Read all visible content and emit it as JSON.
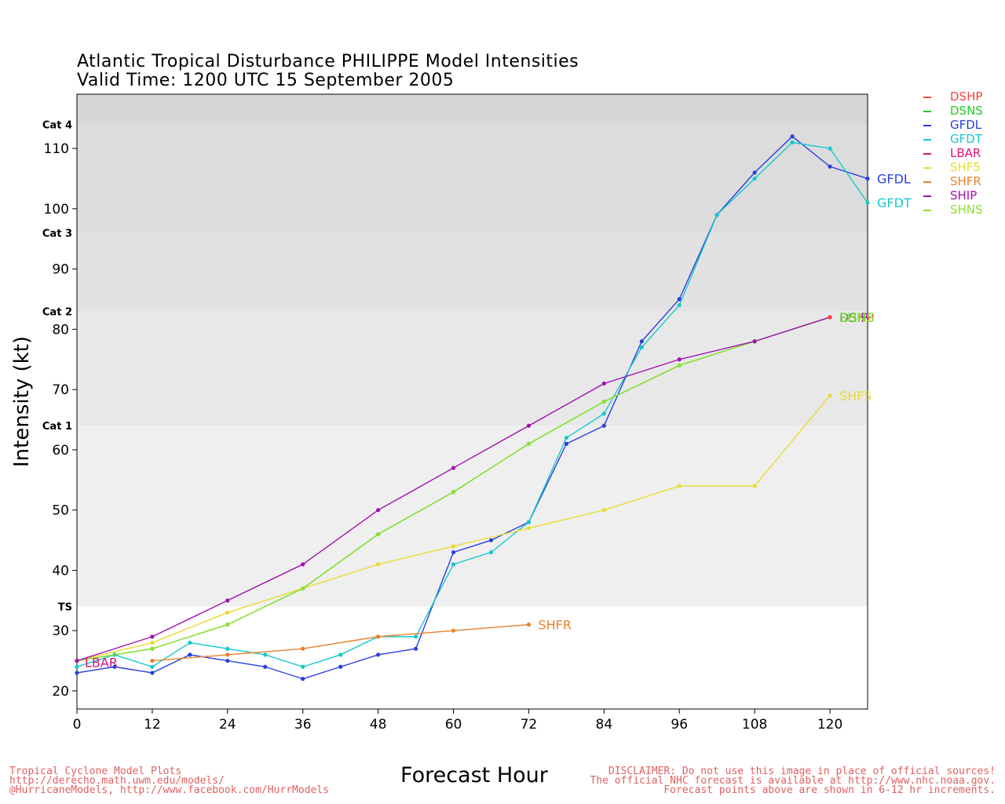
{
  "title_line1": "Atlantic Tropical Disturbance PHILIPPE Model Intensities",
  "title_line2": "Valid Time: 1200 UTC 15 September 2005",
  "legend": [
    {
      "name": "DSHP",
      "color": "#ff4040"
    },
    {
      "name": "DSNS",
      "color": "#22cc22"
    },
    {
      "name": "GFDL",
      "color": "#2a3fe0"
    },
    {
      "name": "GFDT",
      "color": "#16c8cc"
    },
    {
      "name": "LBAR",
      "color": "#e0107a"
    },
    {
      "name": "SHF5",
      "color": "#e8dc30"
    },
    {
      "name": "SHFR",
      "color": "#e8822a"
    },
    {
      "name": "SHIP",
      "color": "#a010b0"
    },
    {
      "name": "SHNS",
      "color": "#8ee030"
    }
  ],
  "footer_left": [
    "Tropical Cyclone Model Plots",
    "http://derecho.math.uwm.edu/models/",
    "@HurricaneModels, http://www.facebook.com/HurrModels"
  ],
  "footer_right": [
    "DISCLAIMER: Do not use this image in place of official sources!",
    "The official NHC forecast is available at http://www.nhc.noaa.gov.",
    "Forecast points above are shown in 6-12 hr increments."
  ],
  "chart_data": {
    "type": "line",
    "xlabel": "Forecast Hour",
    "ylabel": "Intensity (kt)",
    "xlim": [
      0,
      126
    ],
    "ylim": [
      17,
      119
    ],
    "xticks": [
      0,
      12,
      24,
      36,
      48,
      60,
      72,
      84,
      96,
      108,
      120
    ],
    "yticks": [
      20,
      30,
      40,
      50,
      60,
      70,
      80,
      90,
      100,
      110
    ],
    "category_bands": [
      {
        "label": "TS",
        "from": 34,
        "to": 64,
        "color": "#efefef"
      },
      {
        "label": "Cat 1",
        "from": 64,
        "to": 83,
        "color": "#e8e8e8"
      },
      {
        "label": "Cat 2",
        "from": 83,
        "to": 96,
        "color": "#e2e2e2"
      },
      {
        "label": "Cat 3",
        "from": 96,
        "to": 114,
        "color": "#dcdcdc"
      },
      {
        "label": "Cat 4",
        "from": 114,
        "to": 119,
        "color": "#d6d6d6"
      }
    ],
    "category_labels": [
      {
        "label": "TS",
        "value": 34
      },
      {
        "label": "Cat 1",
        "value": 64
      },
      {
        "label": "Cat 2",
        "value": 83
      },
      {
        "label": "Cat 3",
        "value": 96
      },
      {
        "label": "Cat 4",
        "value": 114
      }
    ],
    "series": [
      {
        "name": "GFDL",
        "color": "#2a3fe0",
        "end_label": "GFDL",
        "x": [
          0,
          6,
          12,
          18,
          24,
          30,
          36,
          42,
          48,
          54,
          60,
          66,
          72,
          78,
          84,
          90,
          96,
          102,
          108,
          114,
          120,
          126
        ],
        "y": [
          23,
          24,
          23,
          26,
          25,
          24,
          22,
          24,
          26,
          27,
          43,
          45,
          48,
          61,
          64,
          78,
          85,
          99,
          106,
          112,
          107,
          105
        ]
      },
      {
        "name": "GFDT",
        "color": "#16c8cc",
        "end_label": "GFDT",
        "x": [
          0,
          6,
          12,
          18,
          24,
          30,
          36,
          42,
          48,
          54,
          60,
          66,
          72,
          78,
          84,
          90,
          96,
          102,
          108,
          114,
          120,
          126
        ],
        "y": [
          24,
          26,
          24,
          28,
          27,
          26,
          24,
          26,
          29,
          29,
          41,
          43,
          48,
          62,
          66,
          77,
          84,
          99,
          105,
          111,
          110,
          101
        ]
      },
      {
        "name": "SHF5",
        "color": "#e8dc30",
        "end_label": "SHF5",
        "x": [
          0,
          12,
          24,
          36,
          48,
          60,
          72,
          84,
          96,
          108,
          120
        ],
        "y": [
          25,
          28,
          33,
          37,
          41,
          44,
          47,
          50,
          54,
          54,
          69
        ]
      },
      {
        "name": "SHFR",
        "color": "#e8822a",
        "end_label": "SHFR",
        "x": [
          12,
          24,
          36,
          48,
          60,
          72
        ],
        "y": [
          25,
          26,
          27,
          29,
          30,
          31
        ]
      },
      {
        "name": "LBAR",
        "color": "#e0107a",
        "end_label": "LBAR",
        "x": [
          0
        ],
        "y": [
          25
        ]
      },
      {
        "name": "DSNS",
        "color": "#22cc22",
        "end_label": "",
        "x": [
          0,
          12,
          24,
          36,
          48,
          60,
          72,
          84,
          96,
          108,
          120
        ],
        "y": [
          25,
          27,
          31,
          37,
          46,
          53,
          61,
          68,
          74,
          78,
          82
        ]
      },
      {
        "name": "SHNS",
        "color": "#8ee030",
        "end_label": "",
        "x": [
          0,
          12,
          24,
          36,
          48,
          60,
          72,
          84,
          96,
          108,
          120
        ],
        "y": [
          25,
          27,
          31,
          37,
          46,
          53,
          61,
          68,
          74,
          78,
          82
        ]
      },
      {
        "name": "SHIP",
        "color": "#a010b0",
        "end_label": "",
        "x": [
          0,
          12,
          24,
          36,
          48,
          60,
          72,
          84,
          96,
          108,
          120
        ],
        "y": [
          25,
          29,
          35,
          41,
          50,
          57,
          64,
          71,
          75,
          78,
          82
        ]
      },
      {
        "name": "DSHP",
        "color": "#ff4040",
        "end_label": "",
        "x": [
          120
        ],
        "y": [
          82
        ]
      }
    ],
    "overlap_labels": [
      {
        "text": "DSHP",
        "color": "#ff4040",
        "x": 120,
        "y": 82
      },
      {
        "text": "DSNS",
        "color": "#22cc22",
        "x": 120,
        "y": 82
      },
      {
        "text": "SHIP",
        "color": "#a010b0",
        "x": 120,
        "y": 82
      },
      {
        "text": "SHNS",
        "color": "#8ee030",
        "x": 120,
        "y": 82
      }
    ]
  }
}
